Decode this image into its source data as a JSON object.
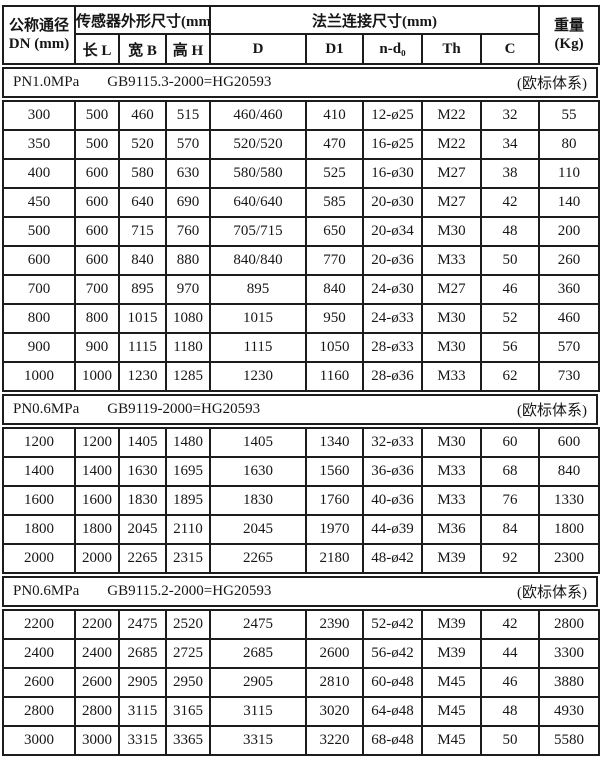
{
  "header": {
    "dn_title": "公称通径",
    "dn_sub": "DN (mm)",
    "sensor_group": "传感器外形尺寸(mm)",
    "flange_group": "法兰连接尺寸(mm)",
    "weight_title": "重量",
    "weight_sub": "(Kg)",
    "sub_cols": [
      "长 L",
      "宽 B",
      "高 H",
      "D",
      "D1",
      "n-d₀",
      "Th",
      "C"
    ]
  },
  "sections": [
    {
      "pn": "PN1.0MPa",
      "standard": "GB9115.3-2000=HG20593",
      "note": "(欧标体系)",
      "rows": [
        [
          "300",
          "500",
          "460",
          "515",
          "460/460",
          "410",
          "12-ø25",
          "M22",
          "32",
          "55"
        ],
        [
          "350",
          "500",
          "520",
          "570",
          "520/520",
          "470",
          "16-ø25",
          "M22",
          "34",
          "80"
        ],
        [
          "400",
          "600",
          "580",
          "630",
          "580/580",
          "525",
          "16-ø30",
          "M27",
          "38",
          "110"
        ],
        [
          "450",
          "600",
          "640",
          "690",
          "640/640",
          "585",
          "20-ø30",
          "M27",
          "42",
          "140"
        ],
        [
          "500",
          "600",
          "715",
          "760",
          "705/715",
          "650",
          "20-ø34",
          "M30",
          "48",
          "200"
        ],
        [
          "600",
          "600",
          "840",
          "880",
          "840/840",
          "770",
          "20-ø36",
          "M33",
          "50",
          "260"
        ],
        [
          "700",
          "700",
          "895",
          "970",
          "895",
          "840",
          "24-ø30",
          "M27",
          "46",
          "360"
        ],
        [
          "800",
          "800",
          "1015",
          "1080",
          "1015",
          "950",
          "24-ø33",
          "M30",
          "52",
          "460"
        ],
        [
          "900",
          "900",
          "1115",
          "1180",
          "1115",
          "1050",
          "28-ø33",
          "M30",
          "56",
          "570"
        ],
        [
          "1000",
          "1000",
          "1230",
          "1285",
          "1230",
          "1160",
          "28-ø36",
          "M33",
          "62",
          "730"
        ]
      ]
    },
    {
      "pn": "PN0.6MPa",
      "standard": "GB9119-2000=HG20593",
      "note": "(欧标体系)",
      "rows": [
        [
          "1200",
          "1200",
          "1405",
          "1480",
          "1405",
          "1340",
          "32-ø33",
          "M30",
          "60",
          "600"
        ],
        [
          "1400",
          "1400",
          "1630",
          "1695",
          "1630",
          "1560",
          "36-ø36",
          "M33",
          "68",
          "840"
        ],
        [
          "1600",
          "1600",
          "1830",
          "1895",
          "1830",
          "1760",
          "40-ø36",
          "M33",
          "76",
          "1330"
        ],
        [
          "1800",
          "1800",
          "2045",
          "2110",
          "2045",
          "1970",
          "44-ø39",
          "M36",
          "84",
          "1800"
        ],
        [
          "2000",
          "2000",
          "2265",
          "2315",
          "2265",
          "2180",
          "48-ø42",
          "M39",
          "92",
          "2300"
        ]
      ]
    },
    {
      "pn": "PN0.6MPa",
      "standard": "GB9115.2-2000=HG20593",
      "note": "(欧标体系)",
      "rows": [
        [
          "2200",
          "2200",
          "2475",
          "2520",
          "2475",
          "2390",
          "52-ø42",
          "M39",
          "42",
          "2800"
        ],
        [
          "2400",
          "2400",
          "2685",
          "2725",
          "2685",
          "2600",
          "56-ø42",
          "M39",
          "44",
          "3300"
        ],
        [
          "2600",
          "2600",
          "2905",
          "2950",
          "2905",
          "2810",
          "60-ø48",
          "M45",
          "46",
          "3880"
        ],
        [
          "2800",
          "2800",
          "3115",
          "3165",
          "3115",
          "3020",
          "64-ø48",
          "M45",
          "48",
          "4930"
        ],
        [
          "3000",
          "3000",
          "3315",
          "3365",
          "3315",
          "3220",
          "68-ø48",
          "M45",
          "50",
          "5580"
        ]
      ]
    }
  ],
  "colors": {
    "border": "#1c1c1c",
    "text": "#161616",
    "background": "#ffffff"
  }
}
